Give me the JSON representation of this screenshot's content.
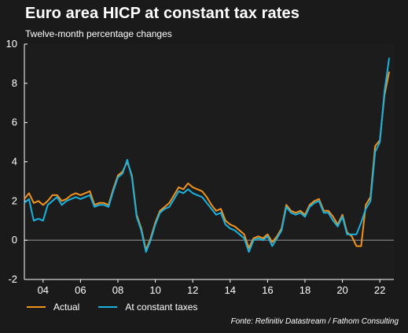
{
  "colors": {
    "background": "#1a1a1a",
    "plot_background": "#1c1c1c",
    "actual": "#f0931e",
    "constant": "#19b2e0",
    "zero_line": "#9a9a9a"
  },
  "legend": {
    "actual_label": "Actual",
    "constant_label": "At constant taxes"
  },
  "source_text": "Fonte: Refinitiv Datastream / Fathom Consulting",
  "chart_data": {
    "type": "line",
    "title": "Euro area HICP at constant tax rates",
    "subtitle": "Twelve-month percentage changes",
    "xlabel": "",
    "ylabel": "",
    "xlim": [
      2003.0,
      2022.75
    ],
    "ylim": [
      -2,
      10
    ],
    "yticks": [
      -2,
      0,
      2,
      4,
      6,
      8,
      10
    ],
    "xticks": [
      {
        "x": 2004,
        "label": "04"
      },
      {
        "x": 2006,
        "label": "06"
      },
      {
        "x": 2008,
        "label": "08"
      },
      {
        "x": 2010,
        "label": "10"
      },
      {
        "x": 2012,
        "label": "12"
      },
      {
        "x": 2014,
        "label": "14"
      },
      {
        "x": 2016,
        "label": "16"
      },
      {
        "x": 2018,
        "label": "18"
      },
      {
        "x": 2020,
        "label": "20"
      },
      {
        "x": 2022,
        "label": "22"
      }
    ],
    "grid": false,
    "legend_position": "bottom-left",
    "series": [
      {
        "name": "Actual",
        "color": "#f0931e",
        "x": [
          2003.0,
          2003.25,
          2003.5,
          2003.75,
          2004.0,
          2004.25,
          2004.5,
          2004.75,
          2005.0,
          2005.25,
          2005.5,
          2005.75,
          2006.0,
          2006.25,
          2006.5,
          2006.75,
          2007.0,
          2007.25,
          2007.5,
          2007.75,
          2008.0,
          2008.25,
          2008.5,
          2008.75,
          2009.0,
          2009.25,
          2009.5,
          2009.75,
          2010.0,
          2010.25,
          2010.5,
          2010.75,
          2011.0,
          2011.25,
          2011.5,
          2011.75,
          2012.0,
          2012.25,
          2012.5,
          2012.75,
          2013.0,
          2013.25,
          2013.5,
          2013.75,
          2014.0,
          2014.25,
          2014.5,
          2014.75,
          2015.0,
          2015.25,
          2015.5,
          2015.75,
          2016.0,
          2016.25,
          2016.5,
          2016.75,
          2017.0,
          2017.25,
          2017.5,
          2017.75,
          2018.0,
          2018.25,
          2018.5,
          2018.75,
          2019.0,
          2019.25,
          2019.5,
          2019.75,
          2020.0,
          2020.25,
          2020.5,
          2020.75,
          2021.0,
          2021.25,
          2021.5,
          2021.75,
          2022.0,
          2022.25,
          2022.5
        ],
        "values": [
          2.1,
          2.4,
          1.9,
          2.0,
          1.8,
          2.0,
          2.3,
          2.3,
          2.0,
          2.1,
          2.3,
          2.4,
          2.3,
          2.4,
          2.5,
          1.8,
          1.9,
          1.9,
          1.8,
          2.6,
          3.3,
          3.5,
          4.0,
          3.3,
          1.3,
          0.6,
          -0.5,
          0.1,
          0.9,
          1.5,
          1.7,
          1.9,
          2.3,
          2.7,
          2.6,
          2.9,
          2.7,
          2.6,
          2.5,
          2.2,
          1.8,
          1.5,
          1.6,
          1.0,
          0.8,
          0.7,
          0.5,
          0.3,
          -0.4,
          0.1,
          0.2,
          0.1,
          0.3,
          -0.1,
          0.2,
          0.6,
          1.8,
          1.5,
          1.4,
          1.5,
          1.3,
          1.8,
          2.0,
          2.1,
          1.5,
          1.5,
          1.2,
          0.8,
          1.3,
          0.4,
          0.2,
          -0.3,
          -0.3,
          1.8,
          2.2,
          4.8,
          5.1,
          7.4,
          8.6
        ]
      },
      {
        "name": "At constant taxes",
        "color": "#19b2e0",
        "x": [
          2003.0,
          2003.25,
          2003.5,
          2003.75,
          2004.0,
          2004.25,
          2004.5,
          2004.75,
          2005.0,
          2005.25,
          2005.5,
          2005.75,
          2006.0,
          2006.25,
          2006.5,
          2006.75,
          2007.0,
          2007.25,
          2007.5,
          2007.75,
          2008.0,
          2008.25,
          2008.5,
          2008.75,
          2009.0,
          2009.25,
          2009.5,
          2009.75,
          2010.0,
          2010.25,
          2010.5,
          2010.75,
          2011.0,
          2011.25,
          2011.5,
          2011.75,
          2012.0,
          2012.25,
          2012.5,
          2012.75,
          2013.0,
          2013.25,
          2013.5,
          2013.75,
          2014.0,
          2014.25,
          2014.5,
          2014.75,
          2015.0,
          2015.25,
          2015.5,
          2015.75,
          2016.0,
          2016.25,
          2016.5,
          2016.75,
          2017.0,
          2017.25,
          2017.5,
          2017.75,
          2018.0,
          2018.25,
          2018.5,
          2018.75,
          2019.0,
          2019.25,
          2019.5,
          2019.75,
          2020.0,
          2020.25,
          2020.5,
          2020.75,
          2021.0,
          2021.25,
          2021.5,
          2021.75,
          2022.0,
          2022.25,
          2022.5
        ],
        "values": [
          1.9,
          2.1,
          1.0,
          1.1,
          1.0,
          1.8,
          2.0,
          2.2,
          1.8,
          2.0,
          2.1,
          2.2,
          2.1,
          2.2,
          2.3,
          1.7,
          1.8,
          1.8,
          1.7,
          2.5,
          3.2,
          3.4,
          4.1,
          3.2,
          1.2,
          0.5,
          -0.6,
          0.0,
          0.8,
          1.4,
          1.6,
          1.7,
          2.1,
          2.5,
          2.4,
          2.6,
          2.4,
          2.3,
          2.2,
          1.9,
          1.6,
          1.3,
          1.4,
          0.8,
          0.6,
          0.5,
          0.3,
          0.1,
          -0.6,
          0.0,
          0.1,
          0.0,
          0.2,
          -0.3,
          0.1,
          0.5,
          1.7,
          1.4,
          1.3,
          1.4,
          1.2,
          1.7,
          1.9,
          2.0,
          1.4,
          1.4,
          1.0,
          0.7,
          1.2,
          0.3,
          0.3,
          0.3,
          0.9,
          1.6,
          2.0,
          4.5,
          5.0,
          7.6,
          9.3
        ]
      }
    ]
  }
}
